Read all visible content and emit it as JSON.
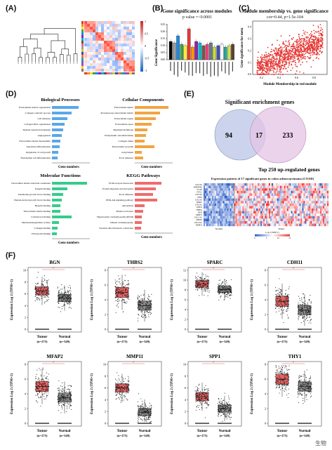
{
  "labels": {
    "A": "(A)",
    "B": "(B)",
    "C": "(C)",
    "D": "(D)",
    "E": "(E)",
    "F": "(F)"
  },
  "panelB": {
    "title": "Gene significance across modules",
    "subtitle": "p value =<0.0001",
    "ylabel": "Gene Significance",
    "ticks": [
      "0.00",
      "0.05",
      "0.10",
      "0.15",
      "0.20",
      "0.25"
    ]
  },
  "panelC": {
    "title": "Module membership vs. gene significance",
    "subtitle": "cor=0.44, p=1.5e-104",
    "ylabel": "Gene significance for meta",
    "xlabel": "Module Membership in red module",
    "xticks": [
      "0.2",
      "0.4",
      "0.6",
      "0.8"
    ],
    "yticks": [
      "0.0",
      "0.1",
      "0.2",
      "0.3",
      "0.4"
    ]
  },
  "panelA": {
    "ticks": [
      "1",
      "0.5",
      "0",
      "-0.5",
      "-1"
    ]
  },
  "panelD": {
    "bp": {
      "title": "Biological Processes",
      "items": [
        "Extracellular matrix organization",
        "Collagen catabolic process",
        "Cell adhesion",
        "Collagen fibril organization",
        "Skeletal system development",
        "Angiogenesis",
        "Extracellular matrix disassembly",
        "Osteoblast differentiation",
        "Regulation of cell growth",
        "Endodermal cell differentiation"
      ],
      "xlabel": "Gene numbers"
    },
    "cc": {
      "title": "Cellular Components",
      "items": [
        "Extracellular matrix",
        "Proteinaceous extracellular matrix",
        "Extracellular region",
        "Extracellular space",
        "Basement membrane",
        "Endoplasmic reticulum lumen",
        "Collagen trimer",
        "Extracellular exosome",
        "Golgi lumen",
        "Focal adhesion"
      ],
      "xlabel": "Gene numbers"
    },
    "mf": {
      "title": "Molecular Functions",
      "items": [
        "Extracellular matrix structural constituent",
        "Integrin binding",
        "Insulin-like growth factor binding",
        "Platelet-derived growth factor binding",
        "Heparin binding",
        "Extracellular matrix binding",
        "Calcium ion binding",
        "Metalloendopeptidase activity",
        "Collagen binding",
        "Fibronectin binding"
      ],
      "xlabel": "Gene numbers"
    },
    "kegg": {
      "title": "KEGG Pathways",
      "items": [
        "ECM-receptor interaction",
        "Protein digestion and absorption",
        "Focal adhesion",
        "PI3K-Akt signaling pathway",
        "Amoebiasis",
        "Platelet activation",
        "Hypertrophic cardiomyopathy (HCM)",
        "Dilated cardiomyopathy",
        "Vascular smooth muscle contraction"
      ],
      "xlabel": "Gene numbers"
    }
  },
  "panelE": {
    "venn_title": "Significant enrichment genes",
    "left": "94",
    "middle": "17",
    "right": "233",
    "bottom": "Top 250 up-regulated genes",
    "heat_title": "Expression pattern of  17 significant genes in colon adenocarcinoma (COAD)",
    "genes": [
      "COL1A2",
      "SERPINH1",
      "VCAN",
      "FSTL1",
      "COL5A2",
      "FBN1",
      "COL1A1",
      "SPARC",
      "COL5A1",
      "CDH11",
      "THBS2",
      "BGN",
      "MMP11",
      "COL11A1",
      "MFAP2",
      "COL10A1",
      "MMP14"
    ],
    "group_normal": "Normal",
    "group_tumor": "Tumor",
    "legend_title": "Log 2 (TPM+1)",
    "legend_ticks": [
      "0",
      "5",
      "10",
      "15"
    ]
  },
  "panelF": {
    "ylabel": "Expression Log 2 (TPM+1)",
    "tumor": "Tumor",
    "normal": "Normal",
    "n_tumor": "(n=275)",
    "n_normal": "(n=349)",
    "plots": [
      {
        "gene": "BGN",
        "ticks": [
          "0",
          "2",
          "4",
          "6",
          "8",
          "10"
        ]
      },
      {
        "gene": "THBS2",
        "ticks": [
          "0",
          "2",
          "4",
          "6",
          "8"
        ]
      },
      {
        "gene": "SPARC",
        "ticks": [
          "0",
          "2",
          "4",
          "6",
          "8",
          "10",
          "12"
        ]
      },
      {
        "gene": "CDH11",
        "ticks": [
          "0",
          "2",
          "4",
          "6",
          "8"
        ]
      },
      {
        "gene": "MFAP2",
        "ticks": [
          "0",
          "2",
          "4",
          "6",
          "8"
        ]
      },
      {
        "gene": "MMP11",
        "ticks": [
          "0",
          "2",
          "4",
          "6",
          "8",
          "10"
        ]
      },
      {
        "gene": "SPP1",
        "ticks": [
          "0",
          "2",
          "4",
          "6",
          "8",
          "10"
        ]
      },
      {
        "gene": "THY1",
        "ticks": [
          "0",
          "2",
          "4",
          "6",
          "8"
        ]
      }
    ]
  },
  "watermark": "生物"
}
